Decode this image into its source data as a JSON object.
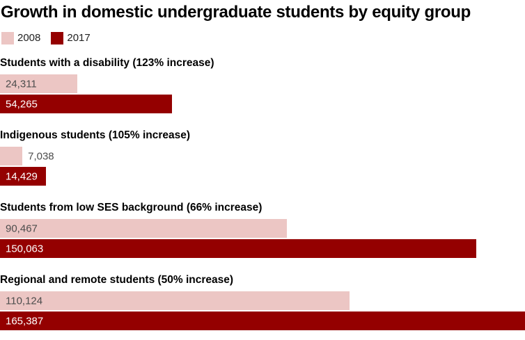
{
  "title": "Growth in domestic undergraduate students by equity group",
  "colors": {
    "series_2008": "#ecc6c4",
    "series_2017": "#940000",
    "value_text_on_pink": "#4d4d4d",
    "value_text_on_red": "#ffffff",
    "value_text_outside": "#4d4d4d",
    "title_text": "#000000",
    "background": "#ffffff"
  },
  "legend": {
    "position": "top-left",
    "items": [
      {
        "label": "2008",
        "color_key": "series_2008"
      },
      {
        "label": "2017",
        "color_key": "series_2017"
      }
    ]
  },
  "chart_data": {
    "type": "bar",
    "orientation": "horizontal",
    "title": "Growth in domestic undergraduate students by equity group",
    "series_names": [
      "2008",
      "2017"
    ],
    "max_value": 165387,
    "axis": {
      "x_min": 0,
      "x_max": 165387,
      "grid": false,
      "ticks_visible": false
    },
    "legend_position": "top-left",
    "groups": [
      {
        "label": "Students with a disability (123% increase)",
        "increase_percent": 123,
        "bars": [
          {
            "series": "2008",
            "value": 24311,
            "display_value": "24,311",
            "label_position": "inside"
          },
          {
            "series": "2017",
            "value": 54265,
            "display_value": "54,265",
            "label_position": "inside"
          }
        ]
      },
      {
        "label": "Indigenous students (105% increase)",
        "increase_percent": 105,
        "bars": [
          {
            "series": "2008",
            "value": 7038,
            "display_value": "7,038",
            "label_position": "outside"
          },
          {
            "series": "2017",
            "value": 14429,
            "display_value": "14,429",
            "label_position": "inside"
          }
        ]
      },
      {
        "label": "Students from low SES background (66% increase)",
        "increase_percent": 66,
        "bars": [
          {
            "series": "2008",
            "value": 90467,
            "display_value": "90,467",
            "label_position": "inside"
          },
          {
            "series": "2017",
            "value": 150063,
            "display_value": "150,063",
            "label_position": "inside"
          }
        ]
      },
      {
        "label": "Regional and remote students (50% increase)",
        "increase_percent": 50,
        "bars": [
          {
            "series": "2008",
            "value": 110124,
            "display_value": "110,124",
            "label_position": "inside"
          },
          {
            "series": "2017",
            "value": 165387,
            "display_value": "165,387",
            "label_position": "inside"
          }
        ]
      }
    ]
  }
}
